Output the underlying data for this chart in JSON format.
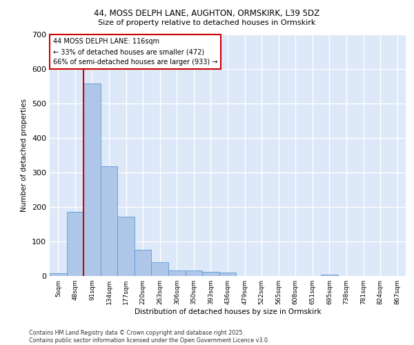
{
  "title_line1": "44, MOSS DELPH LANE, AUGHTON, ORMSKIRK, L39 5DZ",
  "title_line2": "Size of property relative to detached houses in Ormskirk",
  "xlabel": "Distribution of detached houses by size in Ormskirk",
  "ylabel": "Number of detached properties",
  "bin_labels": [
    "5sqm",
    "48sqm",
    "91sqm",
    "134sqm",
    "177sqm",
    "220sqm",
    "263sqm",
    "306sqm",
    "350sqm",
    "393sqm",
    "436sqm",
    "479sqm",
    "522sqm",
    "565sqm",
    "608sqm",
    "651sqm",
    "695sqm",
    "738sqm",
    "781sqm",
    "824sqm",
    "867sqm"
  ],
  "bar_values": [
    8,
    187,
    558,
    318,
    173,
    77,
    40,
    16,
    16,
    12,
    11,
    0,
    0,
    0,
    0,
    0,
    5,
    0,
    0,
    0,
    0
  ],
  "bar_color": "#aec6e8",
  "bar_edge_color": "#5b9bd5",
  "background_color": "#dde8f8",
  "grid_color": "#ffffff",
  "vline_color": "#cc0000",
  "annotation_text": "44 MOSS DELPH LANE: 116sqm\n← 33% of detached houses are smaller (472)\n66% of semi-detached houses are larger (933) →",
  "annotation_box_color": "#ffffff",
  "annotation_box_edge": "#cc0000",
  "footer_text": "Contains HM Land Registry data © Crown copyright and database right 2025.\nContains public sector information licensed under the Open Government Licence v3.0.",
  "ylim": [
    0,
    700
  ],
  "yticks": [
    0,
    100,
    200,
    300,
    400,
    500,
    600,
    700
  ]
}
